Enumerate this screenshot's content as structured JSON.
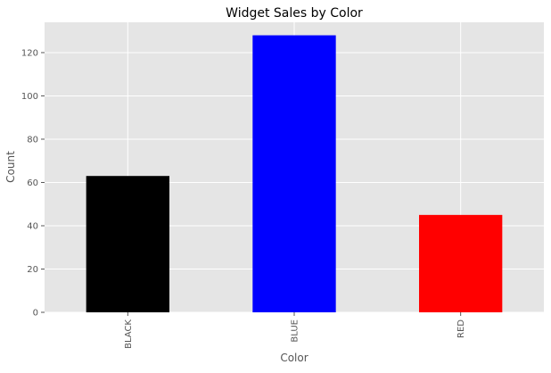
{
  "chart_data": {
    "type": "bar",
    "title": "Widget Sales by Color",
    "xlabel": "Color",
    "ylabel": "Count",
    "categories": [
      "BLACK",
      "BLUE",
      "RED"
    ],
    "values": [
      63,
      128,
      45
    ],
    "colors": [
      "#000000",
      "#0000ff",
      "#ff0000"
    ],
    "ylim": [
      0,
      134
    ],
    "yticks": [
      0,
      20,
      40,
      60,
      80,
      100,
      120
    ],
    "grid": true,
    "legend": "none",
    "style": {
      "plot_background": "#e5e5e5",
      "grid_color": "#ffffff",
      "tick_color": "#555555"
    }
  }
}
